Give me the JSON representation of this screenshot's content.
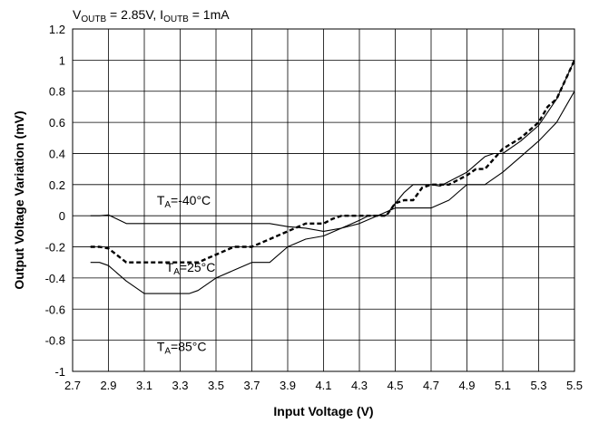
{
  "chart_data": {
    "type": "line",
    "title": "",
    "condition": {
      "v_prefix": "V",
      "v_sub": "OUTB",
      "v_value": " = 2.85V, ",
      "i_prefix": "I",
      "i_sub": "OUTB",
      "i_value": " = 1mA"
    },
    "xlabel": "Input Voltage (V)",
    "ylabel": "Output Voltage Variation (mV)",
    "xlim": [
      2.7,
      5.5
    ],
    "ylim": [
      -1,
      1.2
    ],
    "xticks": [
      "2.7",
      "2.9",
      "3.1",
      "3.3",
      "3.5",
      "3.7",
      "3.9",
      "4.1",
      "4.3",
      "4.5",
      "4.7",
      "4.9",
      "5.1",
      "5.3",
      "5.5"
    ],
    "yticks": [
      "-1",
      "-0.8",
      "-0.6",
      "-0.4",
      "-0.2",
      "0",
      "0.2",
      "0.4",
      "0.6",
      "0.8",
      "1",
      "1.2"
    ],
    "grid": true,
    "series": [
      {
        "name": "T_A=-40°C",
        "label_main": "T",
        "label_sub": "A",
        "label_rest": "=-40°C",
        "color": "#000000",
        "dash": "solid",
        "points": [
          [
            2.8,
            0
          ],
          [
            2.85,
            0
          ],
          [
            2.9,
            0.005
          ],
          [
            3.0,
            -0.05
          ],
          [
            3.1,
            -0.05
          ],
          [
            3.4,
            -0.05
          ],
          [
            3.6,
            -0.05
          ],
          [
            3.8,
            -0.05
          ],
          [
            3.9,
            -0.07
          ],
          [
            4.0,
            -0.08
          ],
          [
            4.1,
            -0.1
          ],
          [
            4.2,
            -0.08
          ],
          [
            4.3,
            -0.03
          ],
          [
            4.35,
            0
          ],
          [
            4.45,
            0.005
          ],
          [
            4.5,
            0.08
          ],
          [
            4.55,
            0.15
          ],
          [
            4.6,
            0.2
          ],
          [
            4.7,
            0.2
          ],
          [
            4.75,
            0.19
          ],
          [
            4.8,
            0.22
          ],
          [
            4.9,
            0.28
          ],
          [
            5.0,
            0.38
          ],
          [
            5.05,
            0.4
          ],
          [
            5.1,
            0.4
          ],
          [
            5.2,
            0.48
          ],
          [
            5.3,
            0.58
          ],
          [
            5.4,
            0.75
          ],
          [
            5.5,
            1.0
          ]
        ]
      },
      {
        "name": "T_A=25°C",
        "label_main": "T",
        "label_sub": "A",
        "label_rest": "=25°C",
        "color": "#000000",
        "dash": "dashed",
        "points": [
          [
            2.8,
            -0.2
          ],
          [
            2.85,
            -0.2
          ],
          [
            2.9,
            -0.21
          ],
          [
            3.0,
            -0.3
          ],
          [
            3.1,
            -0.3
          ],
          [
            3.3,
            -0.3
          ],
          [
            3.4,
            -0.3
          ],
          [
            3.5,
            -0.25
          ],
          [
            3.6,
            -0.2
          ],
          [
            3.7,
            -0.2
          ],
          [
            3.8,
            -0.15
          ],
          [
            3.9,
            -0.1
          ],
          [
            4.0,
            -0.05
          ],
          [
            4.1,
            -0.05
          ],
          [
            4.15,
            -0.02
          ],
          [
            4.2,
            0.0
          ],
          [
            4.3,
            0.0
          ],
          [
            4.45,
            0.0
          ],
          [
            4.5,
            0.08
          ],
          [
            4.55,
            0.1
          ],
          [
            4.6,
            0.1
          ],
          [
            4.65,
            0.18
          ],
          [
            4.7,
            0.2
          ],
          [
            4.8,
            0.2
          ],
          [
            4.9,
            0.26
          ],
          [
            4.95,
            0.3
          ],
          [
            5.0,
            0.3
          ],
          [
            5.1,
            0.43
          ],
          [
            5.2,
            0.5
          ],
          [
            5.3,
            0.6
          ],
          [
            5.35,
            0.7
          ],
          [
            5.4,
            0.75
          ],
          [
            5.5,
            1.0
          ]
        ]
      },
      {
        "name": "T_A=85°C",
        "label_main": "T",
        "label_sub": "A",
        "label_rest": "=85°C",
        "color": "#000000",
        "dash": "solid",
        "points": [
          [
            2.8,
            -0.3
          ],
          [
            2.85,
            -0.3
          ],
          [
            2.9,
            -0.32
          ],
          [
            3.0,
            -0.42
          ],
          [
            3.1,
            -0.5
          ],
          [
            3.2,
            -0.5
          ],
          [
            3.35,
            -0.5
          ],
          [
            3.4,
            -0.48
          ],
          [
            3.5,
            -0.4
          ],
          [
            3.6,
            -0.35
          ],
          [
            3.7,
            -0.3
          ],
          [
            3.75,
            -0.3
          ],
          [
            3.8,
            -0.3
          ],
          [
            3.9,
            -0.2
          ],
          [
            4.0,
            -0.15
          ],
          [
            4.1,
            -0.13
          ],
          [
            4.2,
            -0.08
          ],
          [
            4.3,
            -0.05
          ],
          [
            4.4,
            0.0
          ],
          [
            4.5,
            0.05
          ],
          [
            4.6,
            0.05
          ],
          [
            4.7,
            0.05
          ],
          [
            4.8,
            0.1
          ],
          [
            4.9,
            0.2
          ],
          [
            5.0,
            0.2
          ],
          [
            5.1,
            0.28
          ],
          [
            5.2,
            0.38
          ],
          [
            5.3,
            0.48
          ],
          [
            5.4,
            0.6
          ],
          [
            5.5,
            0.8
          ]
        ]
      }
    ],
    "annotations": [
      {
        "series_index": 0,
        "x": 3.17,
        "y": 0.1
      },
      {
        "series_index": 1,
        "x": 3.22,
        "y": -0.33
      },
      {
        "series_index": 2,
        "x": 3.17,
        "y": -0.84
      }
    ]
  }
}
